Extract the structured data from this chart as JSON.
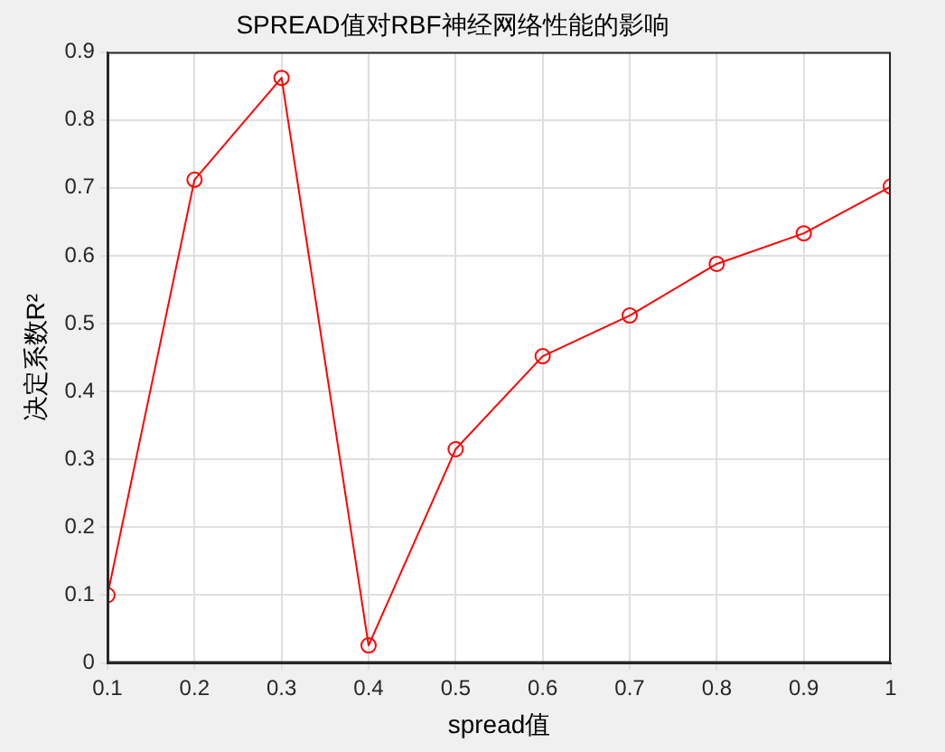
{
  "chart_data": {
    "type": "line",
    "title": "SPREAD值对RBF神经网络性能的影响",
    "xlabel": "spread值",
    "ylabel": "决定系数R²",
    "x": [
      0.1,
      0.2,
      0.3,
      0.4,
      0.5,
      0.6,
      0.7,
      0.8,
      0.9,
      1
    ],
    "series": [
      {
        "color": "#ff0000",
        "values": [
          0.1,
          0.712,
          0.862,
          0.026,
          0.315,
          0.452,
          0.512,
          0.588,
          0.633,
          0.702
        ]
      }
    ],
    "xlim": [
      0.1,
      1
    ],
    "xticks": [
      0.1,
      0.2,
      0.3,
      0.4,
      0.5,
      0.6,
      0.7,
      0.8,
      0.9,
      1
    ],
    "ylim": [
      0,
      0.9
    ],
    "yticks": [
      0,
      0.1,
      0.2,
      0.3,
      0.4,
      0.5,
      0.6,
      0.7,
      0.8,
      0.9
    ],
    "grid": true,
    "legend": false,
    "marker": "circle",
    "line_style": "solid"
  }
}
